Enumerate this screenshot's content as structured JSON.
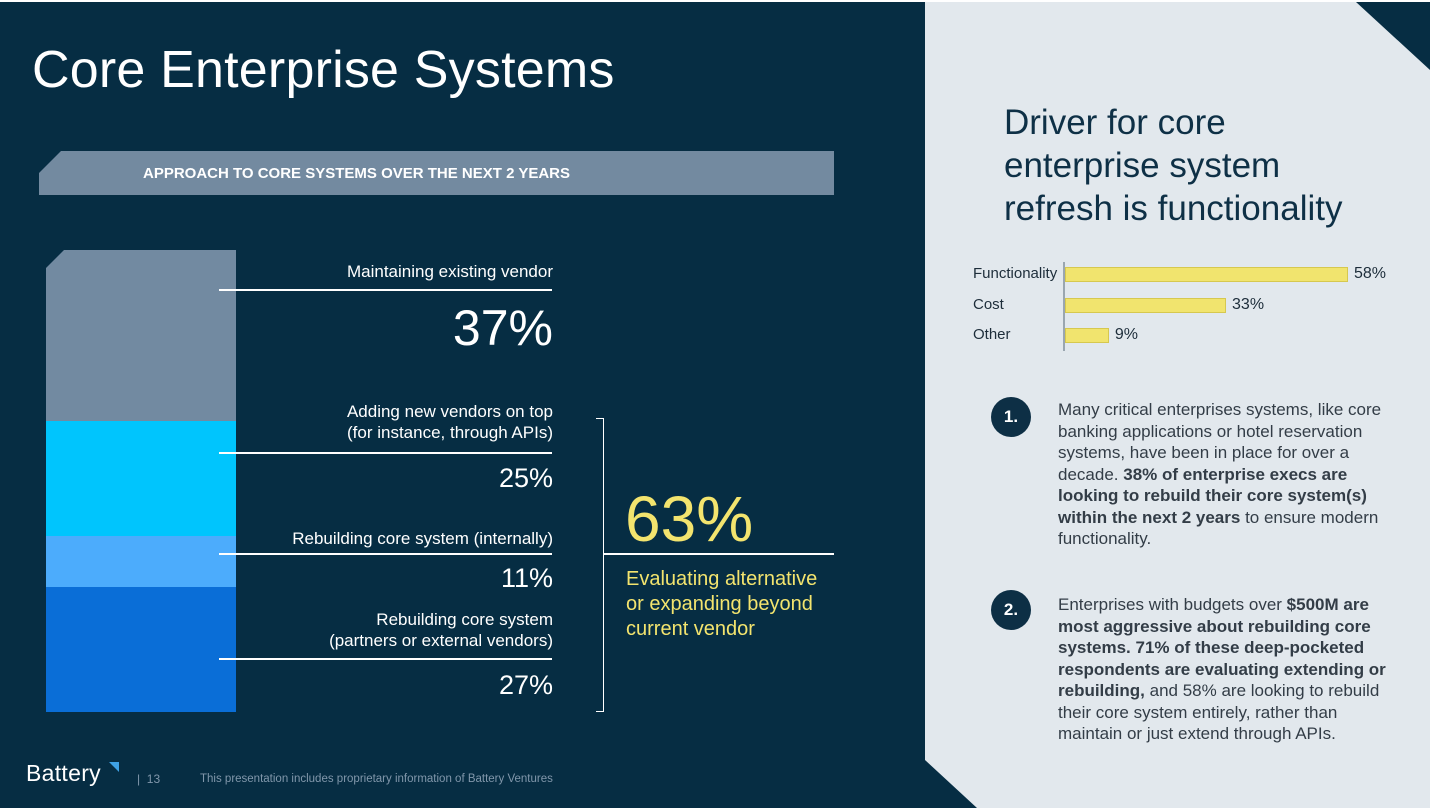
{
  "slide": {
    "title": "Core Enterprise Systems",
    "page_number": "13",
    "page_separator": "|",
    "footer_note": "This presentation includes proprietary information of Battery Ventures",
    "logo_text": "Battery"
  },
  "colors": {
    "background_dark": "#062d43",
    "background_light": "#e2e8ed",
    "highlight_yellow": "#f3e46e",
    "seg_maintaining": "#728aa1",
    "seg_adding": "#00c5fd",
    "seg_internal": "#4cacfc",
    "seg_partners": "#0a6ed7"
  },
  "chart_data": [
    {
      "type": "bar",
      "stacked": true,
      "title": "APPROACH TO CORE SYSTEMS OVER THE NEXT 2 YEARS",
      "categories": [
        "Maintaining existing vendor",
        "Adding new vendors on top (for instance, through APIs)",
        "Rebuilding core system (internally)",
        "Rebuilding core system (partners or external vendors)"
      ],
      "series": [
        {
          "label_lines": [
            "Maintaining existing vendor"
          ],
          "value": 37,
          "display": "37%",
          "color": "#728aa1"
        },
        {
          "label_lines": [
            "Adding new vendors on top",
            "(for instance, through APIs)"
          ],
          "value": 25,
          "display": "25%",
          "color": "#00c5fd"
        },
        {
          "label_lines": [
            "Rebuilding core system (internally)"
          ],
          "value": 11,
          "display": "11%",
          "color": "#4cacfc"
        },
        {
          "label_lines": [
            "Rebuilding core system",
            "(partners or external vendors)"
          ],
          "value": 27,
          "display": "27%",
          "color": "#0a6ed7"
        }
      ],
      "annotation": {
        "value": 63,
        "display": "63%",
        "caption_lines": [
          "Evaluating alternative",
          "or expanding beyond",
          "current vendor"
        ]
      }
    },
    {
      "type": "bar",
      "orientation": "horizontal",
      "title": "Driver for core enterprise system refresh is functionality",
      "title_lines": [
        "Driver for core",
        "enterprise system",
        "refresh is functionality"
      ],
      "categories": [
        "Functionality",
        "Cost",
        "Other"
      ],
      "values": [
        58,
        33,
        9
      ],
      "value_labels": [
        "58%",
        "33%",
        "9%"
      ],
      "xlim": [
        0,
        58
      ],
      "color": "#f1e46e"
    }
  ],
  "insights": [
    {
      "number": "1.",
      "parts": [
        {
          "text": "Many critical enterprises systems, like core banking applications or hotel reservation systems, have been in place for over a decade. ",
          "bold": false
        },
        {
          "text": "38% of enterprise execs are looking to rebuild their core system(s) within the next 2 years",
          "bold": true
        },
        {
          "text": " to ensure modern functionality.",
          "bold": false
        }
      ]
    },
    {
      "number": "2.",
      "parts": [
        {
          "text": "Enterprises with budgets over ",
          "bold": false
        },
        {
          "text": "$500M are most aggressive about rebuilding core systems. 71% of these deep-pocketed respondents are evaluating extending or rebuilding,",
          "bold": true
        },
        {
          "text": " and 58% are looking to rebuild their core system entirely, rather than maintain or just extend through APIs.",
          "bold": false
        }
      ]
    }
  ]
}
